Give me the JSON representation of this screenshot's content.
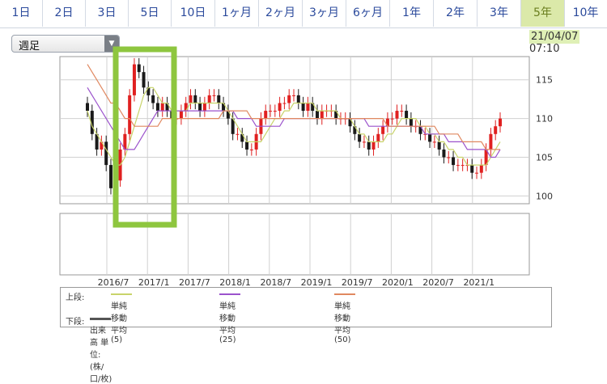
{
  "tabs": [
    {
      "label": "1日"
    },
    {
      "label": "2日"
    },
    {
      "label": "3日"
    },
    {
      "label": "5日"
    },
    {
      "label": "10日"
    },
    {
      "label": "1ヶ月"
    },
    {
      "label": "2ヶ月"
    },
    {
      "label": "3ヶ月"
    },
    {
      "label": "6ヶ月"
    },
    {
      "label": "1年"
    },
    {
      "label": "2年"
    },
    {
      "label": "3年"
    },
    {
      "label": "5年"
    },
    {
      "label": "10年"
    }
  ],
  "active_tab": "5年",
  "period_select": {
    "value": "週足"
  },
  "timestamp": {
    "date": "21/04/07",
    "time": "07:10"
  },
  "colors": {
    "sma5": "#c8d46a",
    "sma25": "#9b52cc",
    "sma50": "#e08860",
    "candle_up": "#e02020",
    "candle_down": "#1a1a1a",
    "highlight": "#8ec63f",
    "grid": "#d0d0d0"
  },
  "legend": {
    "upper_label": "上段:",
    "sma5": "単純移動平均(5)",
    "sma25": "単純移動平均(25)",
    "sma50": "単純移動平均(50)",
    "lower_label": "下段:",
    "volume": "出来高 単位:(株/口/枚)"
  },
  "chart_data": {
    "type": "line",
    "chart_style": "candlestick with moving averages",
    "x_ticks": [
      "2016/7",
      "2017/1",
      "2017/7",
      "2018/1",
      "2018/7",
      "2019/1",
      "2019/7",
      "2020/1",
      "2020/7",
      "2021/1"
    ],
    "y_ticks": [
      100,
      105,
      110,
      115
    ],
    "ylim": [
      99,
      118
    ],
    "series": [
      {
        "name": "週足",
        "values": [
          111,
          108,
          106,
          107,
          104,
          101,
          102,
          106,
          108,
          113,
          117,
          116,
          114,
          113,
          112,
          111,
          112,
          111,
          110,
          110,
          111,
          112,
          113,
          112,
          111,
          112,
          113,
          113,
          112,
          111,
          110,
          108,
          108,
          107,
          106,
          106,
          108,
          110,
          111,
          111,
          111,
          112,
          112,
          113,
          113,
          112,
          111,
          112,
          111,
          110,
          111,
          111,
          111,
          110,
          110,
          110,
          109,
          108,
          107,
          107,
          106,
          107,
          108,
          109,
          110,
          110,
          111,
          111,
          110,
          109,
          109,
          108,
          108,
          107,
          107,
          106,
          105,
          105,
          104,
          104,
          104,
          104,
          103,
          103,
          104,
          106,
          108,
          109,
          110
        ]
      },
      {
        "name": "単純移動平均(5)",
        "values": [
          111,
          109,
          108,
          107,
          106,
          105,
          104,
          104,
          105,
          107,
          109,
          111,
          113,
          114,
          114,
          113,
          112,
          112,
          111,
          111,
          111,
          111,
          112,
          112,
          112,
          112,
          112,
          112,
          112,
          112,
          111,
          110,
          109,
          108,
          107,
          107,
          107,
          107,
          108,
          109,
          110,
          110,
          111,
          111,
          112,
          112,
          112,
          112,
          112,
          111,
          111,
          111,
          111,
          111,
          110,
          110,
          110,
          109,
          108,
          108,
          107,
          107,
          107,
          107,
          108,
          108,
          109,
          110,
          110,
          110,
          110,
          109,
          109,
          108,
          108,
          107,
          107,
          106,
          106,
          105,
          105,
          104,
          104,
          104,
          104,
          104,
          105,
          106,
          107
        ]
      },
      {
        "name": "単純移動平均(25)",
        "values": [
          114,
          113,
          112,
          111,
          110,
          109,
          108,
          107,
          106,
          106,
          106,
          107,
          108,
          109,
          110,
          111,
          111,
          111,
          111,
          111,
          111,
          111,
          111,
          111,
          111,
          111,
          111,
          111,
          111,
          111,
          111,
          111,
          110,
          110,
          110,
          110,
          109,
          109,
          109,
          109,
          109,
          109,
          110,
          110,
          110,
          110,
          110,
          110,
          110,
          110,
          110,
          110,
          110,
          110,
          110,
          110,
          110,
          110,
          110,
          110,
          109,
          109,
          109,
          109,
          109,
          109,
          109,
          109,
          109,
          109,
          109,
          109,
          108,
          108,
          108,
          108,
          108,
          107,
          107,
          107,
          107,
          106,
          106,
          106,
          106,
          106,
          105,
          105,
          106
        ]
      },
      {
        "name": "単純移動平均(50)",
        "values": [
          117,
          116,
          115,
          114,
          113,
          112,
          112,
          111,
          110,
          110,
          109,
          109,
          109,
          109,
          109,
          109,
          110,
          110,
          110,
          110,
          110,
          110,
          110,
          110,
          110,
          110,
          110,
          110,
          110,
          111,
          111,
          111,
          111,
          111,
          111,
          110,
          110,
          110,
          110,
          110,
          110,
          110,
          110,
          110,
          110,
          110,
          110,
          110,
          110,
          110,
          110,
          110,
          110,
          110,
          110,
          110,
          110,
          110,
          110,
          110,
          110,
          110,
          110,
          110,
          109,
          109,
          109,
          109,
          109,
          109,
          109,
          109,
          109,
          109,
          109,
          108,
          108,
          108,
          108,
          108,
          107,
          107,
          107,
          107,
          107,
          106,
          106,
          106,
          106
        ]
      }
    ]
  }
}
